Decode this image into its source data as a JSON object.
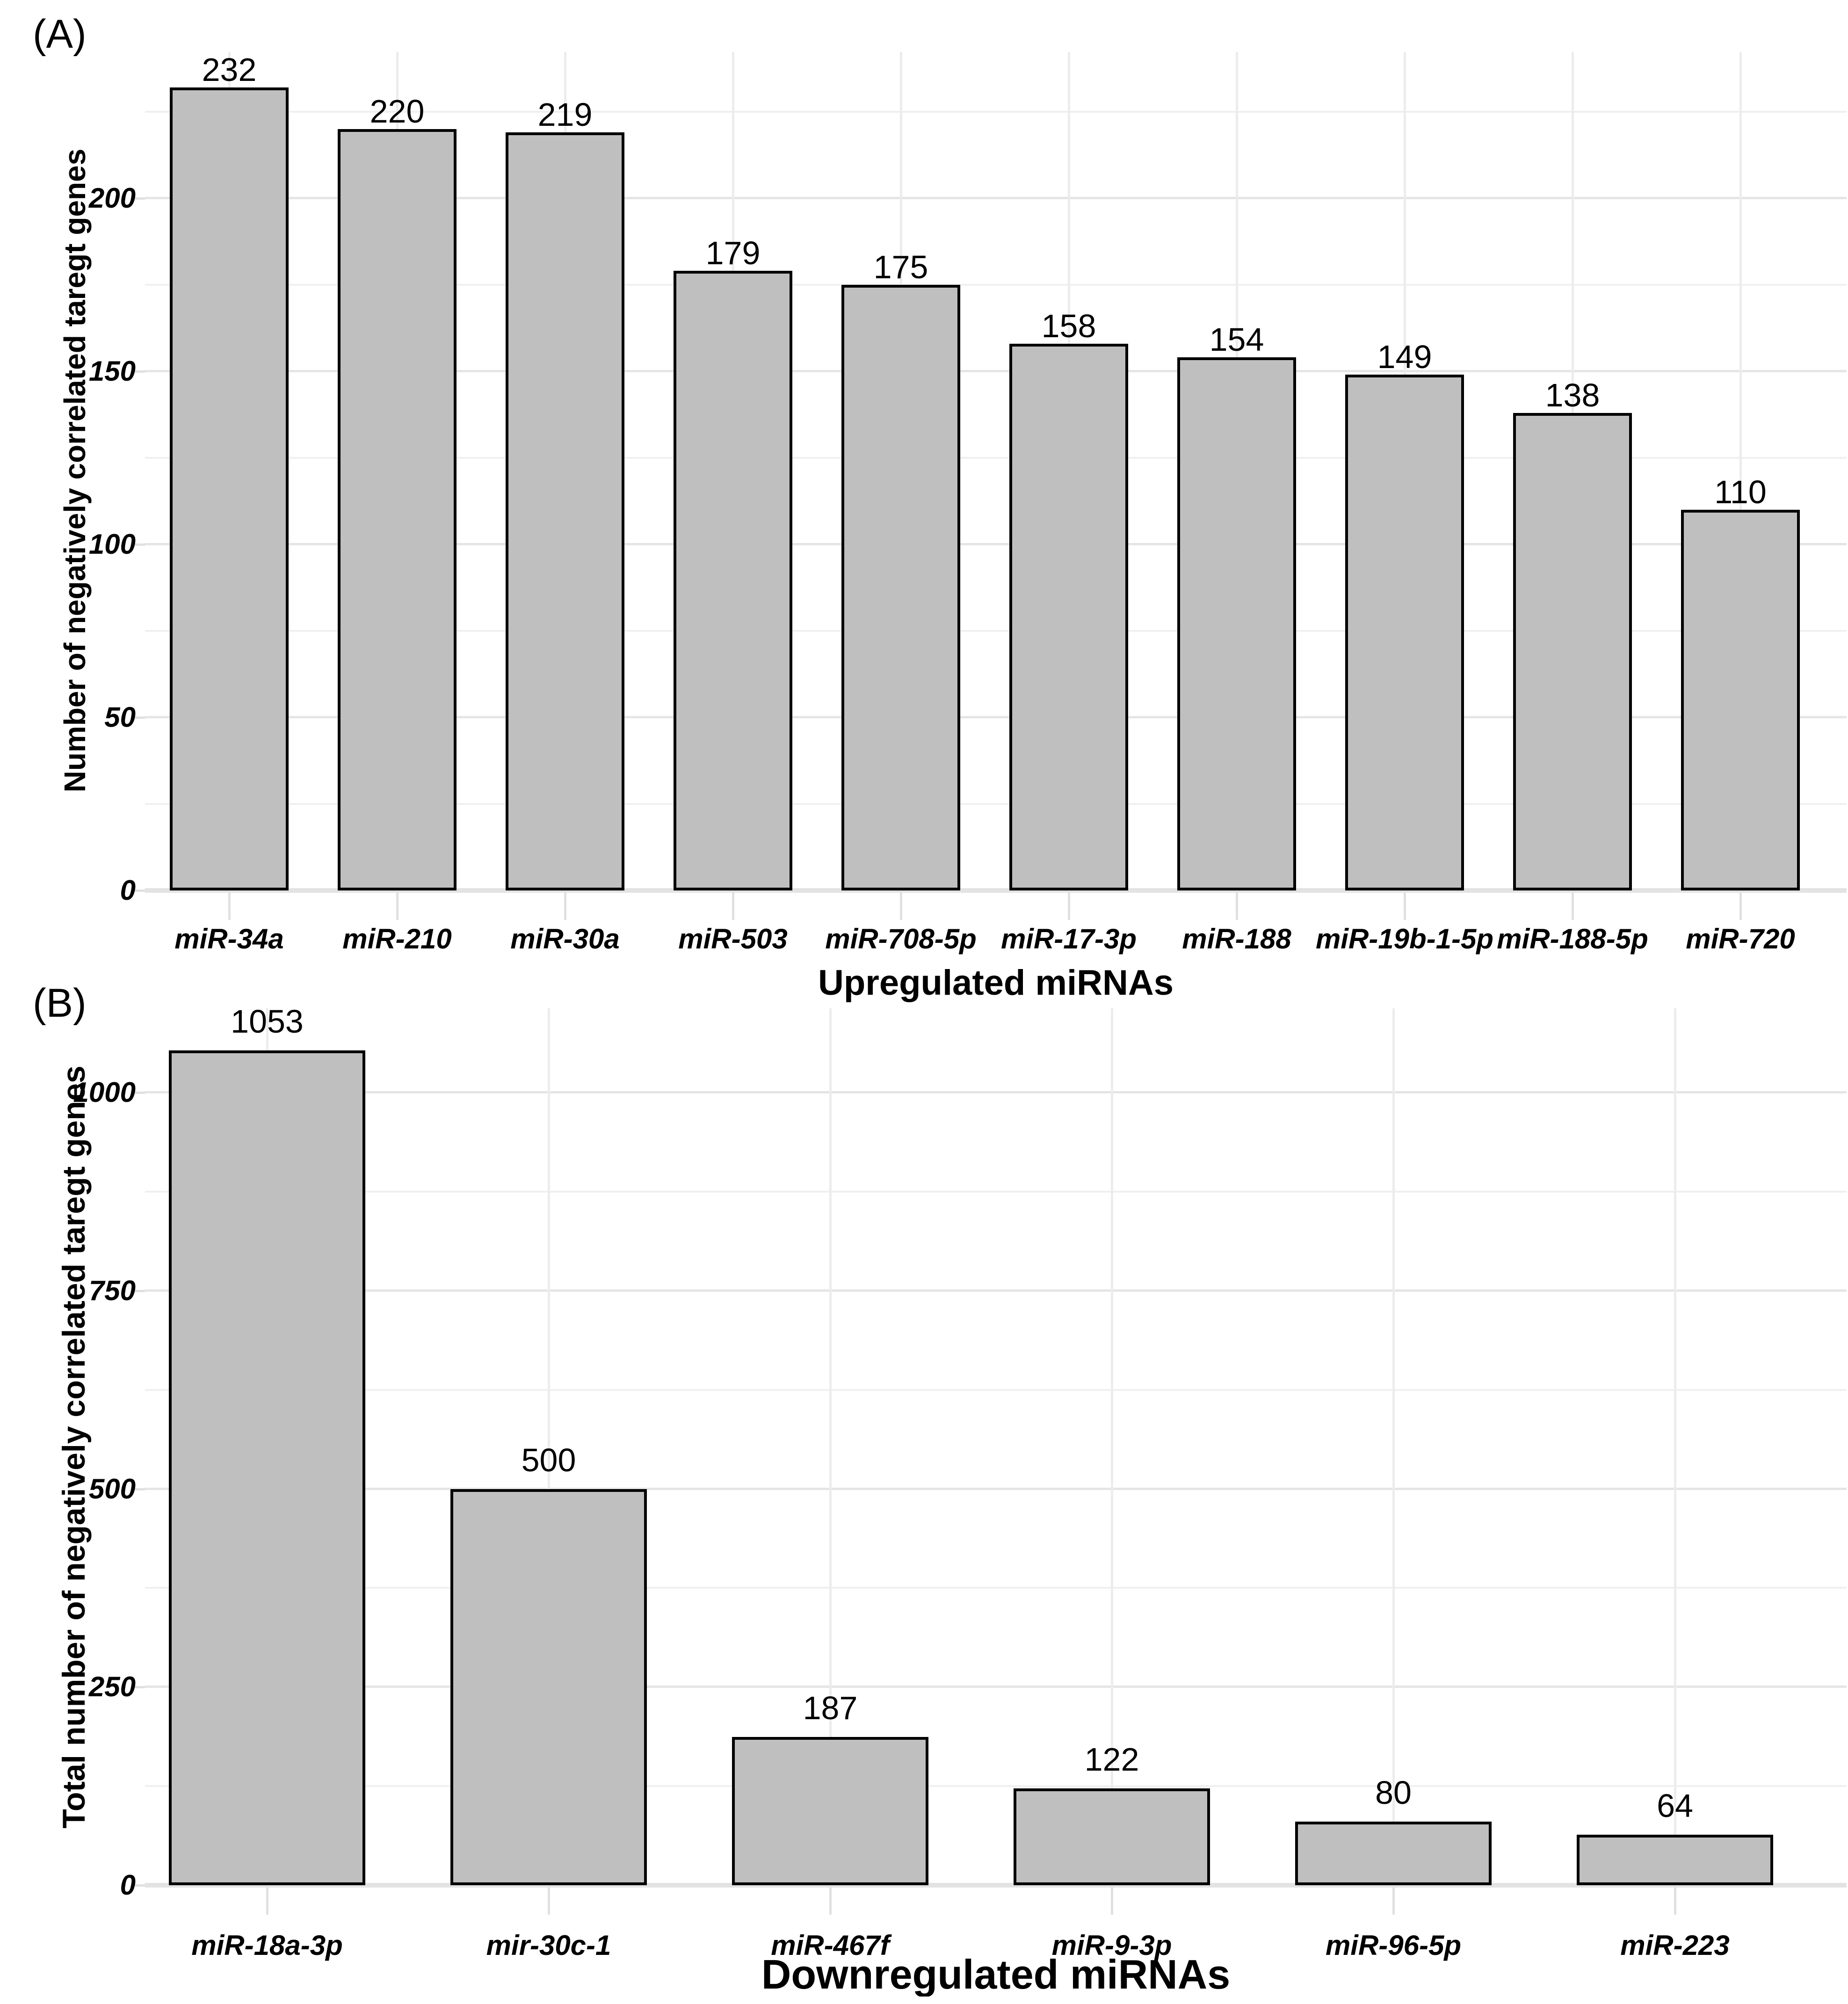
{
  "figure": {
    "background": "#ffffff"
  },
  "colors": {
    "bar_fill": "#bfbfbf",
    "bar_border": "#000000",
    "grid_major": "#e5e5e5",
    "grid_minor": "#f0f0f0",
    "grid_vertical": "#ececec",
    "zero_axis_band": "#e3e3e3",
    "tick_mark": "#e0e0e0",
    "text": "#000000"
  },
  "chart_data": [
    {
      "type": "bar",
      "panel_tag": "(A)",
      "xlabel": "Upregulated miRNAs",
      "ylabel": "Number of negatively correlated taregt genes",
      "categories": [
        "miR-34a",
        "miR-210",
        "miR-30a",
        "miR-503",
        "miR-708-5p",
        "miR-17-3p",
        "miR-188",
        "miR-19b-1-5p",
        "miR-188-5p",
        "miR-720"
      ],
      "values": [
        232,
        220,
        219,
        179,
        175,
        158,
        154,
        149,
        138,
        110
      ],
      "value_labels_shown": true,
      "yticks": [
        0,
        50,
        100,
        150,
        200
      ],
      "ylim": [
        0,
        243
      ],
      "grid": "major+minor, horizontal and vertical",
      "legend": "none"
    },
    {
      "type": "bar",
      "panel_tag": "(B)",
      "xlabel": "Downregulated miRNAs",
      "ylabel": "Total number of negatively correlated taregt genes",
      "categories": [
        "miR-18a-3p",
        "mir-30c-1",
        "miR-467f",
        "miR-9-3p",
        "miR-96-5p",
        "miR-223"
      ],
      "values": [
        1053,
        500,
        187,
        122,
        80,
        64
      ],
      "value_labels_shown": true,
      "yticks": [
        0,
        250,
        500,
        750,
        1000
      ],
      "ylim": [
        0,
        1106
      ],
      "grid": "major+minor, horizontal and vertical",
      "legend": "none"
    }
  ]
}
